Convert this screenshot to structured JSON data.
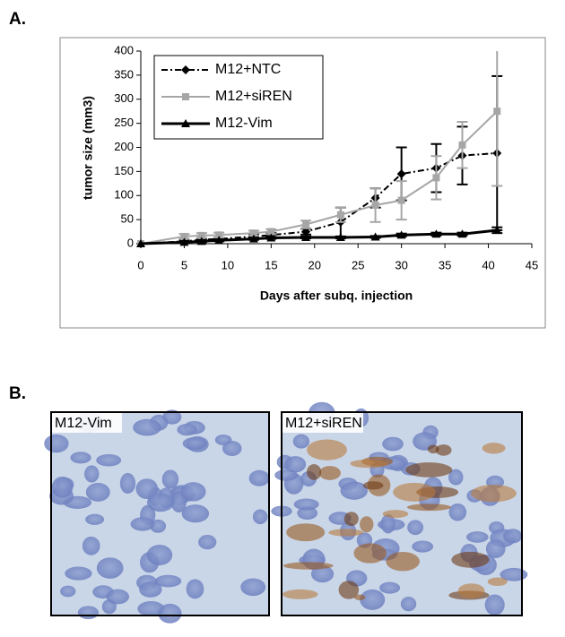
{
  "panel_labels": [
    "A.",
    "B."
  ],
  "chart_data": {
    "type": "line",
    "xlabel": "Days after subq. injection",
    "ylabel": "tumor size (mm3)",
    "x": [
      0,
      5,
      7,
      9,
      13,
      15,
      19,
      23,
      27,
      30,
      34,
      37,
      41
    ],
    "series": [
      {
        "name": "M12+NTC",
        "color": "#000000",
        "marker": "diamond",
        "line_style": "dashdot",
        "values": [
          0,
          5,
          8,
          10,
          15,
          18,
          25,
          45,
          95,
          145,
          157,
          183,
          188
        ],
        "errors": [
          0,
          2,
          2,
          3,
          4,
          4,
          6,
          30,
          20,
          55,
          50,
          60,
          160
        ]
      },
      {
        "name": "M12+siREN",
        "color": "#a6a6a6",
        "marker": "square",
        "line_style": "solid",
        "values": [
          0,
          15,
          17,
          18,
          22,
          25,
          40,
          60,
          80,
          90,
          137,
          205,
          275
        ],
        "errors": [
          0,
          5,
          5,
          5,
          5,
          5,
          8,
          15,
          35,
          40,
          45,
          48,
          155
        ]
      },
      {
        "name": "M12-Vim",
        "color": "#000000",
        "marker": "triangle",
        "line_style": "thick",
        "values": [
          0,
          3,
          5,
          7,
          10,
          12,
          13,
          13,
          14,
          18,
          20,
          20,
          28
        ],
        "errors": [
          0,
          2,
          2,
          2,
          2,
          2,
          2,
          2,
          2,
          3,
          3,
          3,
          6
        ]
      }
    ],
    "xlim": [
      0,
      45
    ],
    "xticks": [
      0,
      5,
      10,
      15,
      20,
      25,
      30,
      35,
      40,
      45
    ],
    "ylim": [
      0,
      400
    ],
    "yticks": [
      0,
      50,
      100,
      150,
      200,
      250,
      300,
      350,
      400
    ],
    "legend": "upper left"
  },
  "images": [
    {
      "label": "M12-Vim"
    },
    {
      "label": "M12+siREN"
    }
  ]
}
